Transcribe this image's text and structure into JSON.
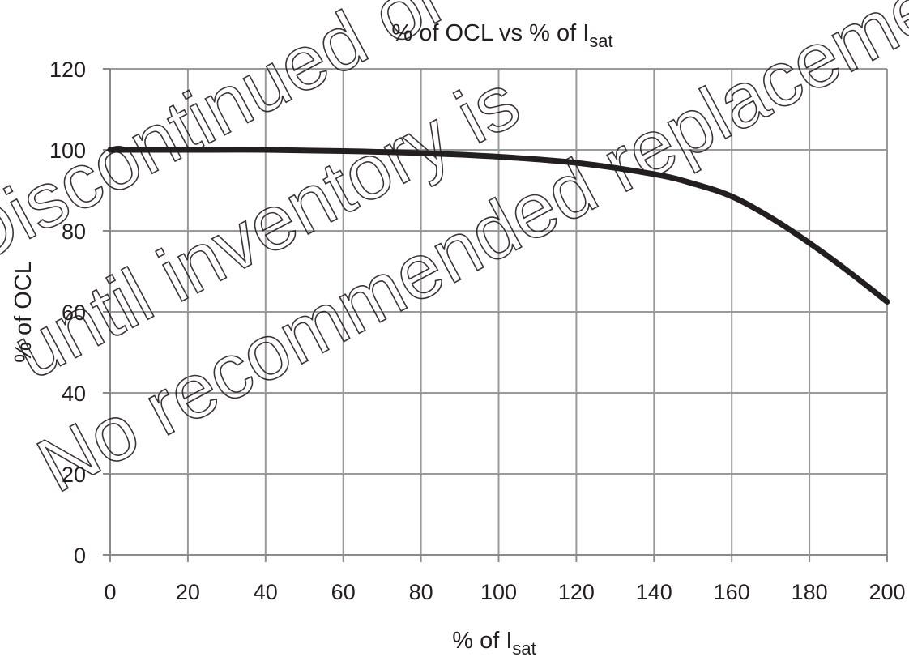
{
  "chart_data": {
    "type": "line",
    "title": "% of OCL vs % of I",
    "title_subscript": "sat",
    "xlabel": "% of I",
    "xlabel_subscript": "sat",
    "ylabel": "% of OCL",
    "xlim": [
      0,
      200
    ],
    "ylim": [
      0,
      120
    ],
    "x_ticks": [
      0,
      20,
      40,
      60,
      80,
      100,
      120,
      140,
      160,
      180,
      200
    ],
    "y_ticks": [
      0,
      20,
      40,
      60,
      80,
      100,
      120
    ],
    "x_tick_labels": [
      "0",
      "20",
      "40",
      "60",
      "80",
      "100",
      "120",
      "140",
      "160",
      "180",
      "200"
    ],
    "y_tick_labels": [
      "0",
      "20",
      "40",
      "60",
      "80",
      "100",
      "120"
    ],
    "grid": true,
    "legend": "none",
    "series": [
      {
        "color": "#231f20",
        "x": [
          0,
          20,
          40,
          60,
          80,
          100,
          120,
          140,
          150,
          160,
          170,
          180,
          190,
          200
        ],
        "y": [
          100,
          100,
          100,
          99.7,
          99.2,
          98.3,
          96.8,
          94,
          91.7,
          88.5,
          83.3,
          77,
          70,
          62.5
        ]
      }
    ]
  },
  "watermark": {
    "lines": [
      "Discontinued or",
      "until inventory is",
      "No recommended replacement"
    ],
    "color": "#231f20"
  }
}
